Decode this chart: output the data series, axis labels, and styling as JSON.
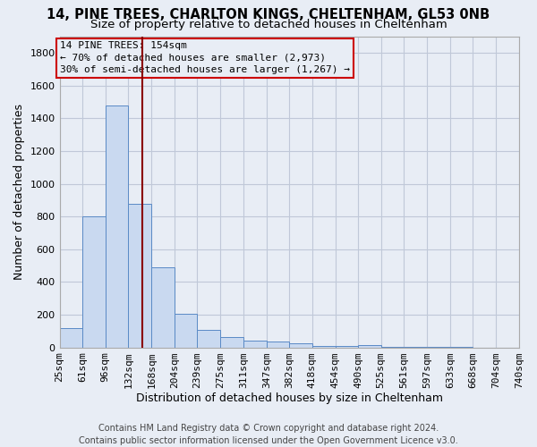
{
  "title_line1": "14, PINE TREES, CHARLTON KINGS, CHELTENHAM, GL53 0NB",
  "title_line2": "Size of property relative to detached houses in Cheltenham",
  "xlabel": "Distribution of detached houses by size in Cheltenham",
  "ylabel": "Number of detached properties",
  "footer_line1": "Contains HM Land Registry data © Crown copyright and database right 2024.",
  "footer_line2": "Contains public sector information licensed under the Open Government Licence v3.0.",
  "annotation_line1": "14 PINE TREES: 154sqm",
  "annotation_line2": "← 70% of detached houses are smaller (2,973)",
  "annotation_line3": "30% of semi-detached houses are larger (1,267) →",
  "property_size": 154,
  "bin_edges": [
    25,
    61,
    96,
    132,
    168,
    204,
    239,
    275,
    311,
    347,
    382,
    418,
    454,
    490,
    525,
    561,
    597,
    633,
    668,
    704,
    740
  ],
  "bar_heights": [
    120,
    800,
    1480,
    880,
    490,
    205,
    105,
    65,
    40,
    35,
    25,
    10,
    10,
    15,
    5,
    5,
    5,
    5,
    0,
    0
  ],
  "bar_color": "#c9d9f0",
  "bar_edge_color": "#5a8ac6",
  "grid_color": "#c0c8d8",
  "red_line_color": "#8b0000",
  "annotation_box_color": "#cc0000",
  "bg_color": "#e8edf5",
  "plot_bg_color": "#e8edf5",
  "ylim": [
    0,
    1900
  ],
  "yticks": [
    0,
    200,
    400,
    600,
    800,
    1000,
    1200,
    1400,
    1600,
    1800
  ],
  "title_fontsize": 10.5,
  "subtitle_fontsize": 9.5,
  "axis_label_fontsize": 9,
  "tick_fontsize": 8,
  "footer_fontsize": 7
}
